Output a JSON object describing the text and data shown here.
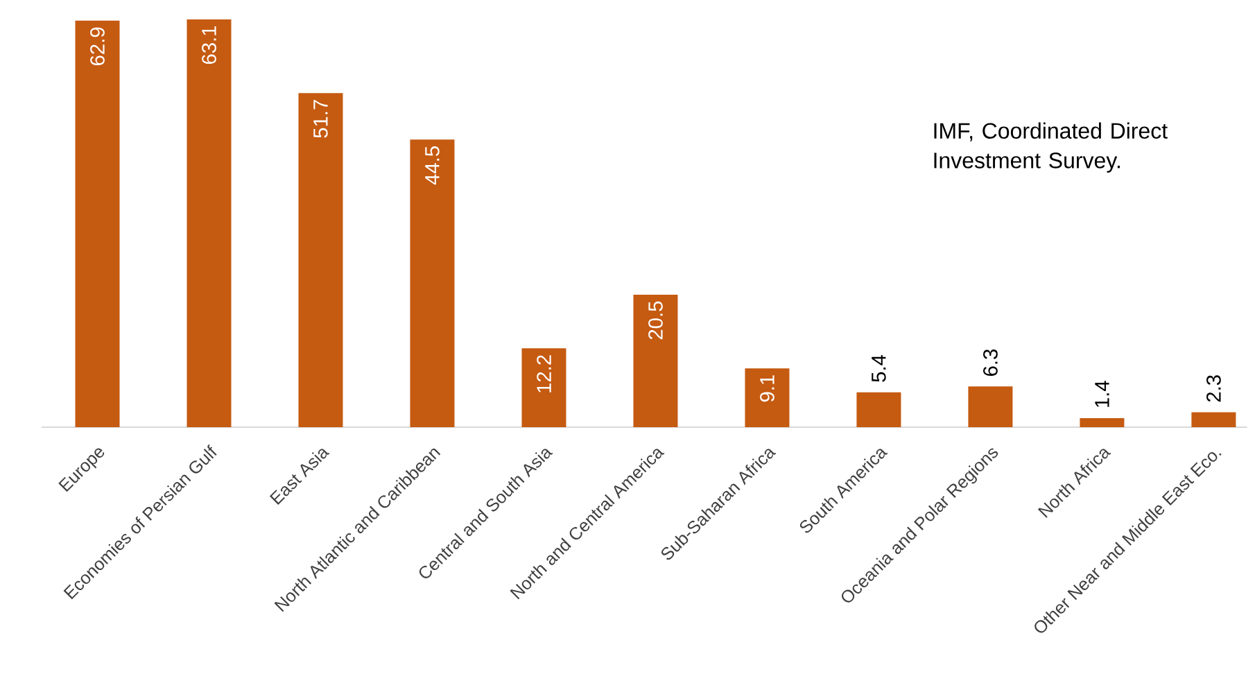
{
  "chart_data": {
    "type": "bar",
    "categories": [
      "Europe",
      "Economies of Persian Gulf",
      "East Asia",
      "North Atlantic and Caribbean",
      "Central and South Asia",
      "North and Central America",
      "Sub-Saharan Africa",
      "South America",
      "Oceania and Polar Regions",
      "North Africa",
      "Other Near and Middle East Eco."
    ],
    "values": [
      62.9,
      63.1,
      51.7,
      44.5,
      12.2,
      20.5,
      9.1,
      5.4,
      6.3,
      1.4,
      2.3
    ],
    "color": "#c55a11",
    "data_labels": true,
    "annotations": [
      "IMF, Coordinated Direct Investment Survey."
    ]
  }
}
